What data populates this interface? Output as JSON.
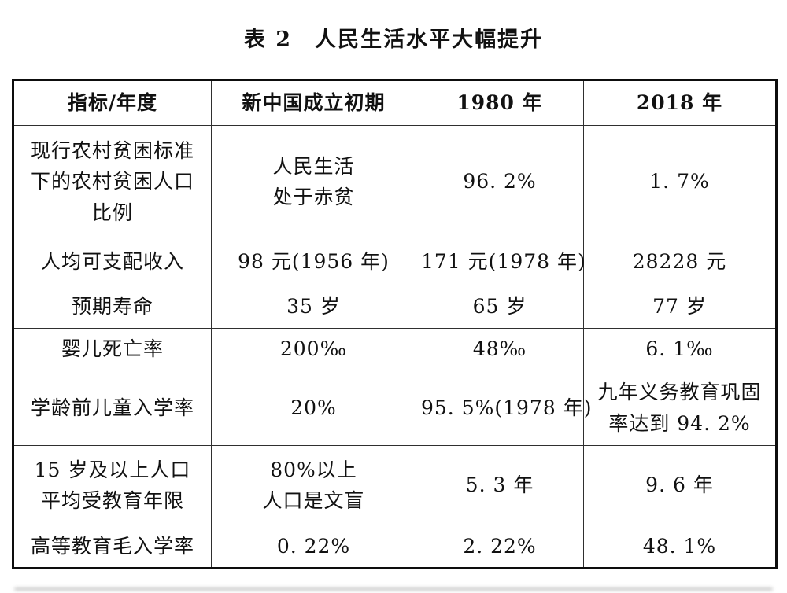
{
  "title": "表 2　人民生活水平大幅提升",
  "table": {
    "headers": [
      "指标/年度",
      "新中国成立初期",
      "1980 年",
      "2018 年"
    ],
    "rows": [
      [
        [
          "现行农村贫困标准",
          "下的农村贫困人口",
          "比例"
        ],
        [
          "人民生活",
          "处于赤贫"
        ],
        [
          "96. 2%"
        ],
        [
          "1. 7%"
        ]
      ],
      [
        [
          "人均可支配收入"
        ],
        [
          "98 元(1956 年)"
        ],
        [
          "171 元(1978 年)"
        ],
        [
          "28228 元"
        ]
      ],
      [
        [
          "预期寿命"
        ],
        [
          "35 岁"
        ],
        [
          "65 岁"
        ],
        [
          "77 岁"
        ]
      ],
      [
        [
          "婴儿死亡率"
        ],
        [
          "200‰"
        ],
        [
          "48‰"
        ],
        [
          "6. 1‰"
        ]
      ],
      [
        [
          "学龄前儿童入学率"
        ],
        [
          "20%"
        ],
        [
          "95. 5%(1978 年)"
        ],
        [
          "九年义务教育巩固",
          "率达到 94. 2%"
        ]
      ],
      [
        [
          "15 岁及以上人口",
          "平均受教育年限"
        ],
        [
          "80%以上",
          "人口是文盲"
        ],
        [
          "5. 3 年"
        ],
        [
          "9. 6 年"
        ]
      ],
      [
        [
          "高等教育毛入学率"
        ],
        [
          "0. 22%"
        ],
        [
          "2. 22%"
        ],
        [
          "48. 1%"
        ]
      ]
    ]
  },
  "colors": {
    "text": "#111111",
    "outer_border": "#0d0d0d",
    "inner_border": "#2f2f2f",
    "background": "#ffffff"
  }
}
